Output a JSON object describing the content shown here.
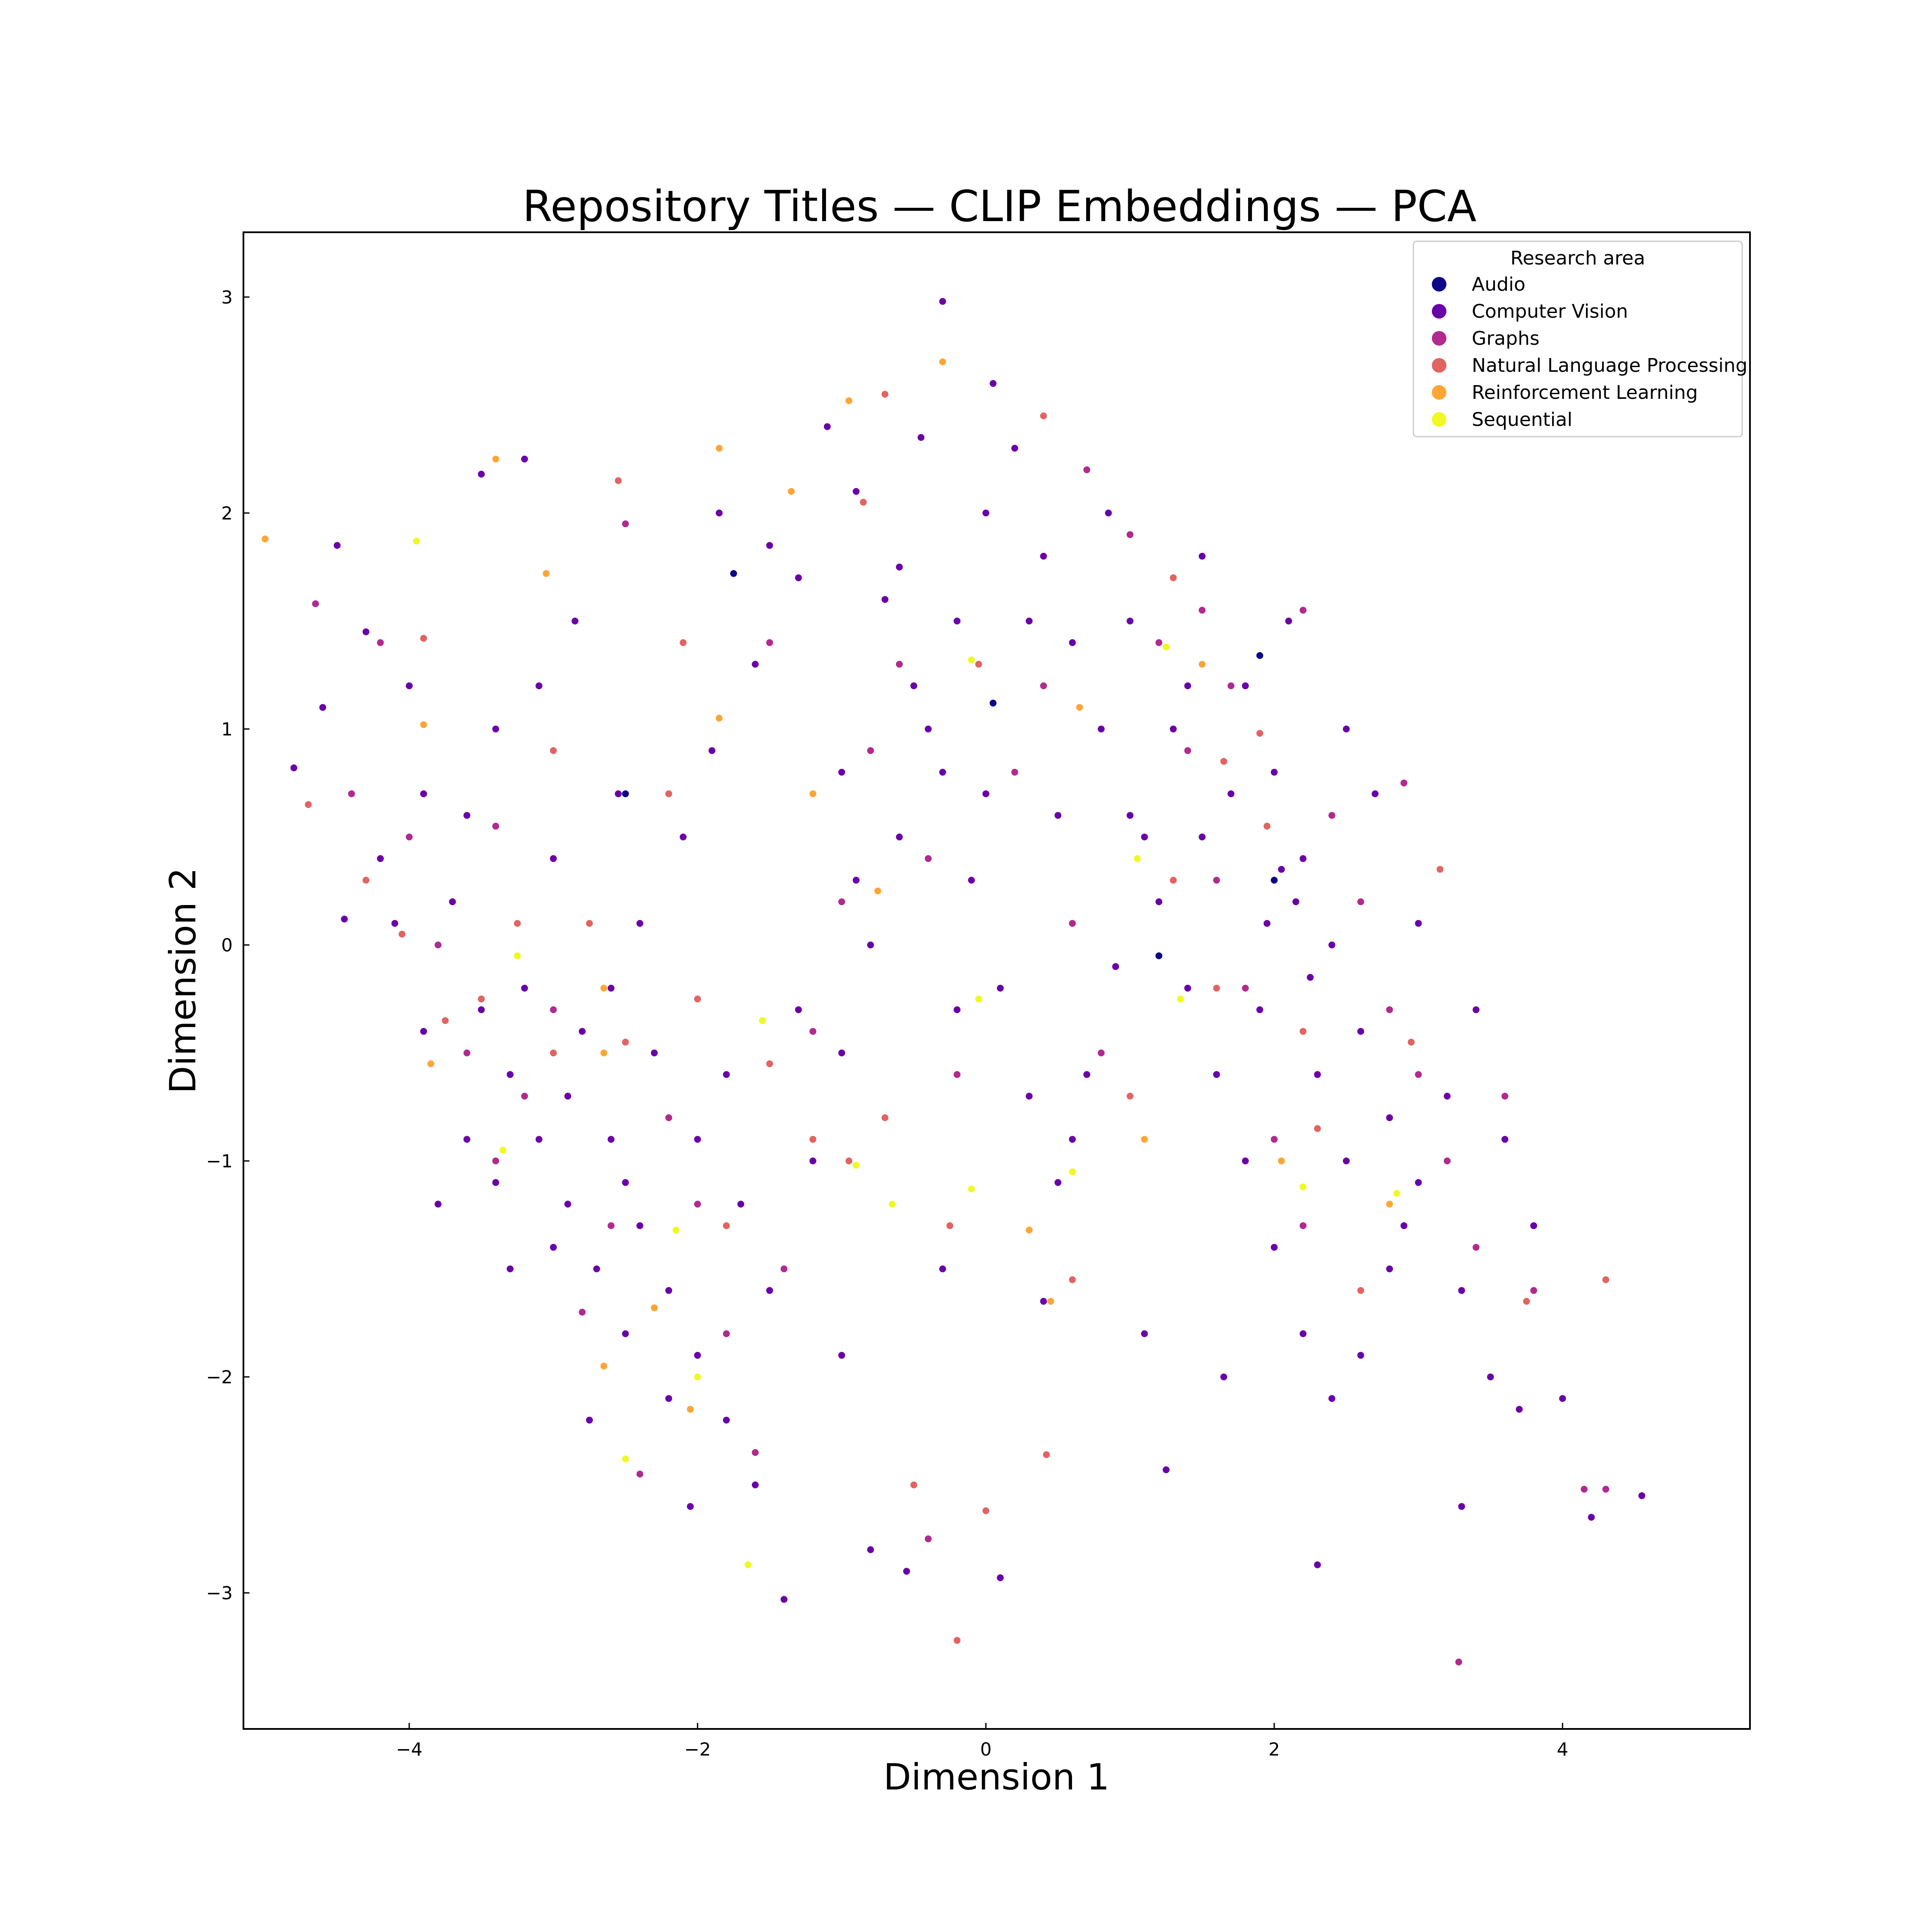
{
  "chart_data": {
    "type": "scatter",
    "title": "Repository Titles — CLIP Embeddings — PCA",
    "xlabel": "Dimension 1",
    "ylabel": "Dimension 2",
    "xlim": [
      -5.15,
      5.3
    ],
    "ylim": [
      -3.63,
      3.3
    ],
    "xticks": [
      -4,
      -2,
      0,
      2,
      4
    ],
    "yticks": [
      -3,
      -2,
      -1,
      0,
      1,
      2,
      3
    ],
    "xtick_labels": [
      "−4",
      "−2",
      "0",
      "2",
      "4"
    ],
    "ytick_labels": [
      "−3",
      "−2",
      "−1",
      "0",
      "1",
      "2",
      "3"
    ],
    "grid": false,
    "legend": {
      "title": "Research area",
      "placement": "top-right"
    },
    "series": [
      {
        "name": "Audio",
        "color": "#0d0887",
        "points": [
          [
            -2.5,
            0.7
          ],
          [
            -1.75,
            1.72
          ],
          [
            2.0,
            0.3
          ],
          [
            1.9,
            1.34
          ],
          [
            0.05,
            1.12
          ],
          [
            1.2,
            -0.05
          ]
        ]
      },
      {
        "name": "Computer Vision",
        "color": "#6a00a8",
        "points": [
          [
            -4.5,
            1.85
          ],
          [
            -4.3,
            1.45
          ],
          [
            -4.0,
            1.2
          ],
          [
            -3.9,
            0.7
          ],
          [
            -3.7,
            0.2
          ],
          [
            -3.5,
            -0.3
          ],
          [
            -3.3,
            -0.6
          ],
          [
            -3.1,
            -0.9
          ],
          [
            -2.9,
            -1.2
          ],
          [
            -2.7,
            -1.5
          ],
          [
            -2.5,
            -1.8
          ],
          [
            -3.6,
            -0.9
          ],
          [
            -3.2,
            -0.2
          ],
          [
            -3.0,
            0.4
          ],
          [
            -2.8,
            -0.4
          ],
          [
            -2.6,
            -0.9
          ],
          [
            -2.4,
            -1.3
          ],
          [
            -2.2,
            -1.6
          ],
          [
            -2.0,
            -1.9
          ],
          [
            -1.8,
            -2.2
          ],
          [
            -1.6,
            -2.5
          ],
          [
            -1.4,
            -3.03
          ],
          [
            -2.3,
            -0.5
          ],
          [
            -2.0,
            -0.9
          ],
          [
            -1.7,
            -1.2
          ],
          [
            -1.5,
            -1.6
          ],
          [
            -1.2,
            -1.0
          ],
          [
            -1.0,
            -0.5
          ],
          [
            -0.8,
            0.0
          ],
          [
            -0.6,
            0.5
          ],
          [
            -0.4,
            1.0
          ],
          [
            -0.2,
            1.5
          ],
          [
            0.0,
            2.0
          ],
          [
            0.2,
            2.3
          ],
          [
            0.4,
            1.8
          ],
          [
            0.6,
            1.4
          ],
          [
            0.8,
            1.0
          ],
          [
            1.0,
            0.6
          ],
          [
            1.2,
            0.2
          ],
          [
            1.4,
            -0.2
          ],
          [
            1.6,
            -0.6
          ],
          [
            1.8,
            -1.0
          ],
          [
            2.0,
            -1.4
          ],
          [
            2.2,
            -1.8
          ],
          [
            2.4,
            -2.1
          ],
          [
            2.6,
            -1.9
          ],
          [
            2.8,
            -1.5
          ],
          [
            3.0,
            -1.1
          ],
          [
            3.2,
            -0.7
          ],
          [
            3.4,
            -0.3
          ],
          [
            3.6,
            -0.9
          ],
          [
            3.8,
            -1.3
          ],
          [
            4.0,
            -2.1
          ],
          [
            4.2,
            -2.65
          ],
          [
            4.55,
            -2.55
          ],
          [
            3.3,
            -2.6
          ],
          [
            2.3,
            -2.87
          ],
          [
            1.25,
            -2.43
          ],
          [
            0.1,
            -2.93
          ],
          [
            -0.55,
            -2.9
          ],
          [
            -0.8,
            -2.8
          ],
          [
            -2.55,
            0.7
          ],
          [
            -1.1,
            2.4
          ],
          [
            -0.3,
            2.98
          ],
          [
            0.05,
            2.6
          ],
          [
            -0.45,
            2.35
          ],
          [
            0.85,
            2.0
          ],
          [
            1.5,
            1.8
          ],
          [
            1.8,
            1.2
          ],
          [
            2.0,
            0.8
          ],
          [
            2.2,
            0.4
          ],
          [
            2.4,
            0.0
          ],
          [
            2.6,
            -0.4
          ],
          [
            2.8,
            -0.8
          ],
          [
            3.0,
            0.1
          ],
          [
            2.7,
            0.7
          ],
          [
            2.5,
            1.0
          ],
          [
            2.1,
            1.5
          ],
          [
            1.3,
            1.0
          ],
          [
            1.1,
            0.5
          ],
          [
            0.9,
            -0.1
          ],
          [
            0.7,
            -0.6
          ],
          [
            0.5,
            -1.1
          ],
          [
            0.3,
            -0.7
          ],
          [
            0.1,
            -0.2
          ],
          [
            -0.1,
            0.3
          ],
          [
            -0.3,
            0.8
          ],
          [
            -0.5,
            1.2
          ],
          [
            -0.7,
            1.6
          ],
          [
            -0.9,
            2.1
          ],
          [
            -1.3,
            1.7
          ],
          [
            -1.6,
            1.3
          ],
          [
            -1.9,
            0.9
          ],
          [
            -2.1,
            0.5
          ],
          [
            -2.4,
            0.1
          ],
          [
            -2.6,
            -0.2
          ],
          [
            -2.9,
            -0.7
          ],
          [
            -3.4,
            -1.1
          ],
          [
            -3.8,
            -1.2
          ],
          [
            -4.45,
            0.12
          ],
          [
            -4.8,
            0.82
          ],
          [
            -4.6,
            1.1
          ],
          [
            -3.2,
            2.25
          ],
          [
            -3.5,
            2.18
          ],
          [
            -1.85,
            2.0
          ],
          [
            -1.5,
            1.85
          ],
          [
            -0.6,
            1.75
          ],
          [
            0.3,
            1.5
          ],
          [
            1.9,
            -0.3
          ],
          [
            2.3,
            -0.6
          ],
          [
            2.5,
            -1.0
          ],
          [
            2.9,
            -1.3
          ],
          [
            3.3,
            -1.6
          ],
          [
            3.5,
            -2.0
          ],
          [
            3.7,
            -2.15
          ],
          [
            1.65,
            -2.0
          ],
          [
            1.1,
            -1.8
          ],
          [
            0.4,
            -1.65
          ],
          [
            -0.3,
            -1.5
          ],
          [
            -1.0,
            -1.9
          ],
          [
            -2.2,
            -2.1
          ],
          [
            -2.75,
            -2.2
          ],
          [
            -2.05,
            -2.6
          ],
          [
            -1.0,
            0.8
          ],
          [
            -0.2,
            -0.3
          ],
          [
            0.6,
            -0.9
          ],
          [
            1.5,
            0.5
          ],
          [
            2.05,
            0.35
          ],
          [
            2.15,
            0.2
          ],
          [
            2.25,
            -0.15
          ],
          [
            1.95,
            0.1
          ],
          [
            1.7,
            0.7
          ],
          [
            1.4,
            1.2
          ],
          [
            1.0,
            1.5
          ],
          [
            0.5,
            0.6
          ],
          [
            0.0,
            0.7
          ],
          [
            -0.9,
            0.3
          ],
          [
            -1.3,
            -0.3
          ],
          [
            -1.8,
            -0.6
          ],
          [
            -2.5,
            -1.1
          ],
          [
            -3.0,
            -1.4
          ],
          [
            -3.3,
            -1.5
          ],
          [
            -3.9,
            -0.4
          ],
          [
            -4.1,
            0.1
          ],
          [
            -4.2,
            0.4
          ],
          [
            -3.6,
            0.6
          ],
          [
            -3.4,
            1.0
          ],
          [
            -3.1,
            1.2
          ],
          [
            -2.85,
            1.5
          ]
        ]
      },
      {
        "name": "Graphs",
        "color": "#b12a90",
        "points": [
          [
            -4.65,
            1.58
          ],
          [
            -4.2,
            1.4
          ],
          [
            -4.0,
            0.5
          ],
          [
            -3.8,
            0.0
          ],
          [
            -3.6,
            -0.5
          ],
          [
            -3.4,
            -1.0
          ],
          [
            -3.2,
            -0.7
          ],
          [
            -3.0,
            -0.3
          ],
          [
            -2.8,
            -1.7
          ],
          [
            -2.6,
            -1.3
          ],
          [
            -2.4,
            -2.45
          ],
          [
            -2.2,
            -0.8
          ],
          [
            -2.0,
            -1.2
          ],
          [
            -1.8,
            -1.8
          ],
          [
            -1.6,
            -2.35
          ],
          [
            -1.4,
            -1.5
          ],
          [
            -1.2,
            -0.4
          ],
          [
            -1.0,
            0.2
          ],
          [
            -0.8,
            0.9
          ],
          [
            -0.6,
            1.3
          ],
          [
            -0.4,
            0.4
          ],
          [
            -0.2,
            -0.6
          ],
          [
            0.2,
            0.8
          ],
          [
            0.4,
            1.2
          ],
          [
            0.6,
            0.1
          ],
          [
            0.8,
            -0.5
          ],
          [
            1.0,
            1.9
          ],
          [
            1.2,
            1.4
          ],
          [
            1.4,
            0.9
          ],
          [
            1.6,
            0.3
          ],
          [
            1.8,
            -0.2
          ],
          [
            2.0,
            -0.9
          ],
          [
            2.2,
            -1.3
          ],
          [
            2.4,
            0.6
          ],
          [
            2.6,
            0.2
          ],
          [
            2.8,
            -0.3
          ],
          [
            3.0,
            -0.6
          ],
          [
            3.2,
            -1.0
          ],
          [
            3.4,
            -1.4
          ],
          [
            3.6,
            -0.7
          ],
          [
            3.8,
            -1.6
          ],
          [
            4.15,
            -2.52
          ],
          [
            4.3,
            -2.52
          ],
          [
            3.28,
            -3.32
          ],
          [
            -0.4,
            -2.75
          ],
          [
            0.7,
            2.2
          ],
          [
            1.5,
            1.55
          ],
          [
            2.2,
            1.55
          ],
          [
            1.7,
            1.2
          ],
          [
            2.9,
            0.75
          ],
          [
            -2.5,
            1.95
          ],
          [
            -1.5,
            1.4
          ],
          [
            -3.4,
            0.55
          ],
          [
            -4.4,
            0.7
          ]
        ]
      },
      {
        "name": "Natural Language Processing",
        "color": "#e16462",
        "points": [
          [
            -4.7,
            0.65
          ],
          [
            -4.3,
            0.3
          ],
          [
            -4.05,
            0.05
          ],
          [
            -3.75,
            -0.35
          ],
          [
            -3.5,
            -0.25
          ],
          [
            -3.25,
            0.1
          ],
          [
            -3.0,
            -0.5
          ],
          [
            -2.75,
            0.1
          ],
          [
            -2.5,
            -0.45
          ],
          [
            -2.2,
            0.7
          ],
          [
            -2.0,
            -0.25
          ],
          [
            -1.8,
            -1.3
          ],
          [
            -1.5,
            -0.55
          ],
          [
            -1.2,
            -0.9
          ],
          [
            -0.95,
            -1.0
          ],
          [
            -0.7,
            -0.8
          ],
          [
            -0.5,
            -2.5
          ],
          [
            -0.25,
            -1.3
          ],
          [
            0.0,
            -2.62
          ],
          [
            -0.2,
            -3.22
          ],
          [
            0.42,
            -2.36
          ],
          [
            0.6,
            -1.55
          ],
          [
            1.0,
            -0.7
          ],
          [
            1.3,
            0.3
          ],
          [
            1.65,
            0.85
          ],
          [
            1.95,
            0.55
          ],
          [
            2.3,
            -0.85
          ],
          [
            2.6,
            -1.6
          ],
          [
            2.95,
            -0.45
          ],
          [
            3.15,
            0.35
          ],
          [
            3.75,
            -1.65
          ],
          [
            4.3,
            -1.55
          ],
          [
            -0.85,
            2.05
          ],
          [
            -0.7,
            2.55
          ],
          [
            -0.05,
            1.3
          ],
          [
            0.4,
            2.45
          ],
          [
            1.3,
            1.7
          ],
          [
            1.9,
            0.98
          ],
          [
            1.6,
            -0.2
          ],
          [
            2.2,
            -0.4
          ],
          [
            -2.55,
            2.15
          ],
          [
            -2.1,
            1.4
          ],
          [
            -3.0,
            0.9
          ],
          [
            -3.9,
            1.42
          ]
        ]
      },
      {
        "name": "Reinforcement Learning",
        "color": "#fca636",
        "points": [
          [
            -5.0,
            1.88
          ],
          [
            -3.9,
            1.02
          ],
          [
            -3.85,
            -0.55
          ],
          [
            -3.4,
            2.25
          ],
          [
            -3.05,
            1.72
          ],
          [
            -2.65,
            -0.2
          ],
          [
            -2.65,
            -1.95
          ],
          [
            -2.3,
            -1.68
          ],
          [
            -2.05,
            -2.15
          ],
          [
            -1.85,
            2.3
          ],
          [
            -1.85,
            1.05
          ],
          [
            -1.35,
            2.1
          ],
          [
            -1.2,
            0.7
          ],
          [
            -0.95,
            2.52
          ],
          [
            -0.3,
            2.7
          ],
          [
            0.3,
            -1.32
          ],
          [
            0.45,
            -1.65
          ],
          [
            1.1,
            -0.9
          ],
          [
            1.5,
            1.3
          ],
          [
            2.05,
            -1.0
          ],
          [
            2.8,
            -1.2
          ],
          [
            0.65,
            1.1
          ],
          [
            -0.75,
            0.25
          ],
          [
            -2.65,
            -0.5
          ]
        ]
      },
      {
        "name": "Sequential",
        "color": "#f0f921",
        "points": [
          [
            -3.95,
            1.87
          ],
          [
            -3.25,
            -0.05
          ],
          [
            -3.35,
            -0.95
          ],
          [
            -2.5,
            -2.38
          ],
          [
            -2.15,
            -1.32
          ],
          [
            -2.0,
            -2.0
          ],
          [
            -1.65,
            -2.87
          ],
          [
            -1.55,
            -0.35
          ],
          [
            -0.9,
            -1.02
          ],
          [
            -0.65,
            -1.2
          ],
          [
            -0.05,
            -0.25
          ],
          [
            -0.1,
            -1.13
          ],
          [
            0.6,
            -1.05
          ],
          [
            1.35,
            -0.25
          ],
          [
            1.25,
            1.38
          ],
          [
            2.2,
            -1.12
          ],
          [
            2.85,
            -1.15
          ],
          [
            1.05,
            0.4
          ],
          [
            -0.1,
            1.32
          ]
        ]
      }
    ]
  }
}
